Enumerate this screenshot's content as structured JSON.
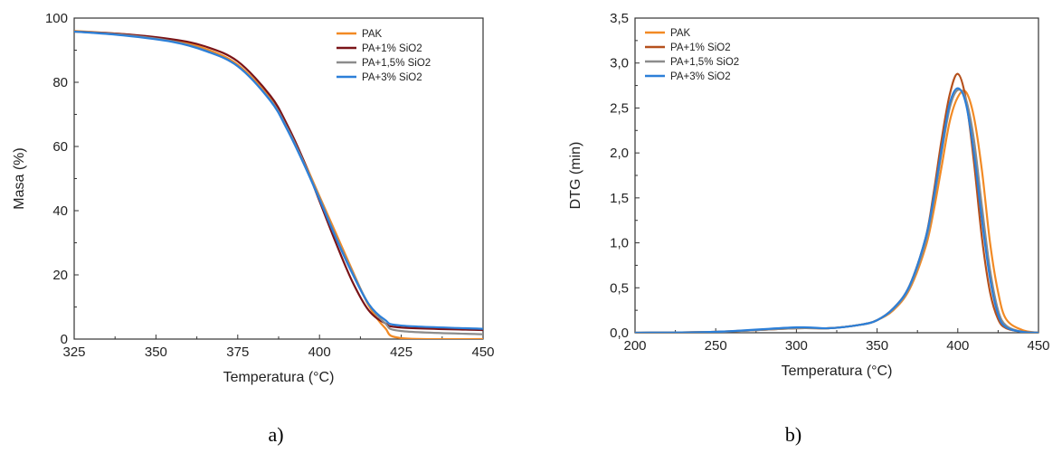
{
  "chart_data": [
    {
      "type": "line",
      "xlabel": "Temperatura (°C)",
      "ylabel": "Masa (%)",
      "xlim": [
        325,
        450
      ],
      "ylim": [
        0,
        100
      ],
      "xticks": [
        "325",
        "350",
        "375",
        "400",
        "425",
        "450"
      ],
      "yticks": [
        "0",
        "20",
        "40",
        "60",
        "80",
        "100"
      ],
      "legend_position": "top-right",
      "caption": "a)",
      "series": [
        {
          "name": "PAK",
          "color": "#f28a24",
          "x": [
            325,
            340,
            355,
            365,
            375,
            385,
            390,
            395,
            400,
            405,
            410,
            415,
            420,
            425,
            450
          ],
          "y": [
            96,
            95,
            93.2,
            90.5,
            85.5,
            75,
            66.5,
            56,
            44.5,
            33,
            21.5,
            10.5,
            3.5,
            0.3,
            0
          ]
        },
        {
          "name": "PA+1% SiO2",
          "color": "#7a1418",
          "x": [
            325,
            340,
            355,
            365,
            375,
            385,
            390,
            395,
            400,
            405,
            410,
            415,
            420,
            425,
            450
          ],
          "y": [
            95.8,
            95,
            93.4,
            91.2,
            86.5,
            75.8,
            67,
            56,
            43,
            30,
            18,
            9,
            5,
            3.6,
            2.8
          ]
        },
        {
          "name": "PA+1,5% SiO2",
          "color": "#8c8c8c",
          "x": [
            325,
            340,
            355,
            365,
            375,
            385,
            390,
            395,
            400,
            405,
            410,
            415,
            420,
            425,
            450
          ],
          "y": [
            95.8,
            94.8,
            92.8,
            90,
            85,
            74.5,
            66,
            55.5,
            44,
            32,
            21,
            11,
            5,
            2.5,
            1.5
          ]
        },
        {
          "name": "PA+3% SiO2",
          "color": "#2c7fd8",
          "x": [
            325,
            340,
            355,
            365,
            375,
            385,
            390,
            395,
            400,
            405,
            410,
            415,
            420,
            425,
            450
          ],
          "y": [
            95.8,
            94.6,
            92.6,
            89.8,
            85,
            74.2,
            65.5,
            55,
            43.5,
            31.5,
            20.5,
            11,
            6,
            4.2,
            3.2
          ]
        }
      ]
    },
    {
      "type": "line",
      "xlabel": "Temperatura (°C)",
      "ylabel": "DTG (min)",
      "xlim": [
        200,
        450
      ],
      "ylim": [
        0,
        3.5
      ],
      "xticks": [
        "200",
        "250",
        "300",
        "350",
        "400",
        "450"
      ],
      "yticks": [
        "0,0",
        "0,5",
        "1,0",
        "1,5",
        "2,0",
        "2,5",
        "3,0",
        "3,5"
      ],
      "legend_position": "top-left",
      "caption": "b)",
      "series": [
        {
          "name": "PAK",
          "color": "#f28a24",
          "x": [
            200,
            250,
            300,
            320,
            340,
            350,
            360,
            370,
            380,
            385,
            390,
            395,
            400,
            405,
            410,
            415,
            420,
            425,
            430,
            440,
            450
          ],
          "y": [
            0,
            0.01,
            0.05,
            0.05,
            0.09,
            0.14,
            0.25,
            0.48,
            0.95,
            1.35,
            1.85,
            2.35,
            2.62,
            2.68,
            2.4,
            1.8,
            1.0,
            0.45,
            0.15,
            0.03,
            0
          ]
        },
        {
          "name": "PA+1% SiO2",
          "color": "#b5501c",
          "x": [
            200,
            250,
            300,
            320,
            340,
            350,
            360,
            370,
            380,
            385,
            390,
            395,
            400,
            405,
            410,
            415,
            420,
            425,
            430,
            440,
            450
          ],
          "y": [
            0,
            0.01,
            0.05,
            0.05,
            0.09,
            0.14,
            0.27,
            0.52,
            1.05,
            1.55,
            2.15,
            2.65,
            2.88,
            2.6,
            1.9,
            1.05,
            0.45,
            0.15,
            0.05,
            0.01,
            0
          ]
        },
        {
          "name": "PA+1,5% SiO2",
          "color": "#8c8c8c",
          "x": [
            200,
            250,
            300,
            320,
            340,
            350,
            360,
            370,
            380,
            385,
            390,
            395,
            400,
            405,
            410,
            415,
            420,
            425,
            430,
            440,
            450
          ],
          "y": [
            0,
            0.01,
            0.05,
            0.05,
            0.09,
            0.14,
            0.26,
            0.5,
            1.0,
            1.45,
            2.0,
            2.5,
            2.7,
            2.6,
            2.15,
            1.4,
            0.7,
            0.25,
            0.08,
            0.01,
            0
          ]
        },
        {
          "name": "PA+3% SiO2",
          "color": "#2c7fd8",
          "x": [
            200,
            250,
            300,
            320,
            340,
            350,
            360,
            370,
            380,
            385,
            390,
            395,
            400,
            405,
            410,
            415,
            420,
            425,
            430,
            440,
            450
          ],
          "y": [
            0,
            0.01,
            0.06,
            0.05,
            0.09,
            0.14,
            0.27,
            0.52,
            1.05,
            1.5,
            2.05,
            2.55,
            2.72,
            2.55,
            2.0,
            1.25,
            0.6,
            0.2,
            0.06,
            0.01,
            0
          ]
        }
      ]
    }
  ]
}
